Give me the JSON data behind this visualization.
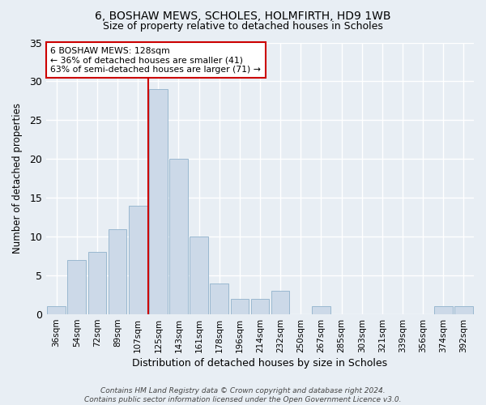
{
  "title1": "6, BOSHAW MEWS, SCHOLES, HOLMFIRTH, HD9 1WB",
  "title2": "Size of property relative to detached houses in Scholes",
  "xlabel": "Distribution of detached houses by size in Scholes",
  "ylabel": "Number of detached properties",
  "categories": [
    "36sqm",
    "54sqm",
    "72sqm",
    "89sqm",
    "107sqm",
    "125sqm",
    "143sqm",
    "161sqm",
    "178sqm",
    "196sqm",
    "214sqm",
    "232sqm",
    "250sqm",
    "267sqm",
    "285sqm",
    "303sqm",
    "321sqm",
    "339sqm",
    "356sqm",
    "374sqm",
    "392sqm"
  ],
  "values": [
    1,
    7,
    8,
    11,
    14,
    29,
    20,
    10,
    4,
    2,
    2,
    3,
    0,
    1,
    0,
    0,
    0,
    0,
    0,
    1,
    1
  ],
  "bar_color": "#ccd9e8",
  "bar_edge_color": "#9ab8d0",
  "annotation_text": "6 BOSHAW MEWS: 128sqm\n← 36% of detached houses are smaller (41)\n63% of semi-detached houses are larger (71) →",
  "annotation_box_color": "#ffffff",
  "annotation_box_edge_color": "#cc0000",
  "line_color": "#cc0000",
  "ylim": [
    0,
    35
  ],
  "yticks": [
    0,
    5,
    10,
    15,
    20,
    25,
    30,
    35
  ],
  "footer_text": "Contains HM Land Registry data © Crown copyright and database right 2024.\nContains public sector information licensed under the Open Government Licence v3.0.",
  "bg_color": "#e8eef4",
  "grid_color": "#ffffff",
  "title1_fontsize": 10,
  "title2_fontsize": 9
}
